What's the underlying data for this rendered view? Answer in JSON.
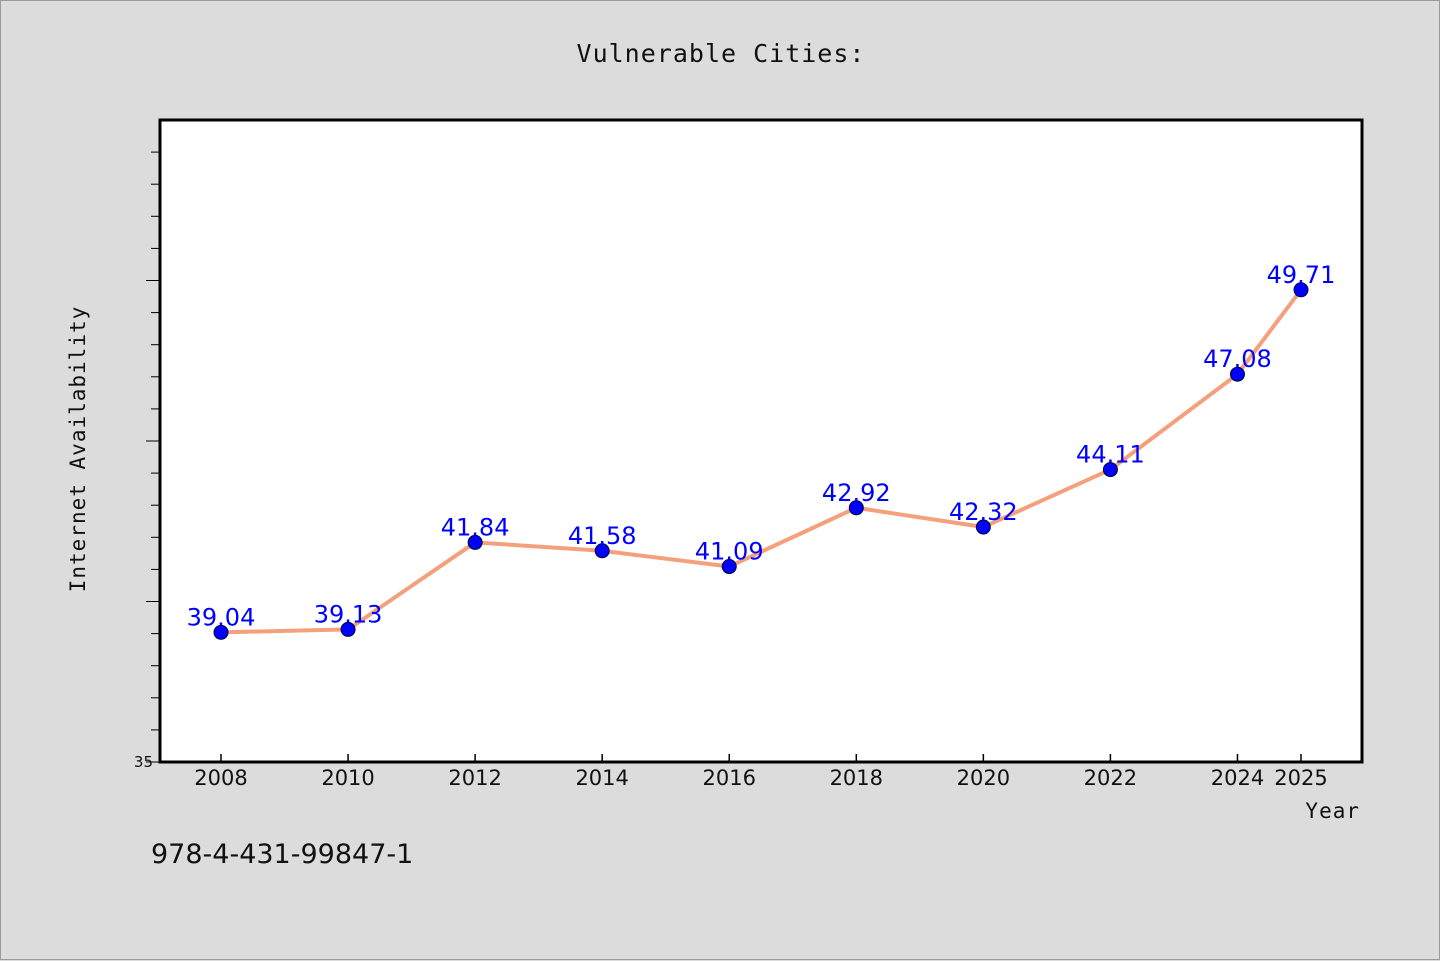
{
  "chart_data": {
    "type": "line",
    "title": "Vulnerable Cities:",
    "xlabel": "Year",
    "ylabel": "Internet Availability",
    "x": [
      2008,
      2010,
      2012,
      2014,
      2016,
      2018,
      2020,
      2022,
      2024,
      2025
    ],
    "x_tick_labels": [
      "2008",
      "2010",
      "2012",
      "2014",
      "2016",
      "2018",
      "2020",
      "2022",
      "2024",
      "2025"
    ],
    "series": [
      {
        "values": [
          39.04,
          39.13,
          41.84,
          41.58,
          41.09,
          42.92,
          42.32,
          44.11,
          47.08,
          49.71
        ],
        "labels": [
          "39.04",
          "39.13",
          "41.84",
          "41.58",
          "41.09",
          "42.92",
          "42.32",
          "44.11",
          "47.08",
          "49.71"
        ],
        "line_color": "#f4a07c",
        "marker_color": "#0000ff"
      }
    ],
    "ylim": [
      35,
      55
    ],
    "y_tick_labels": [
      {
        "value": 35,
        "label": "35"
      }
    ],
    "y_minor_step": 1,
    "grid": false,
    "legend": "none"
  },
  "footer": {
    "isbn": "978-4-431-99847-1"
  },
  "colors": {
    "background": "#dcdcdc",
    "plot_background": "#ffffff",
    "line": "#f4a07c",
    "marker": "#0000ff",
    "data_label": "#0000ff"
  }
}
